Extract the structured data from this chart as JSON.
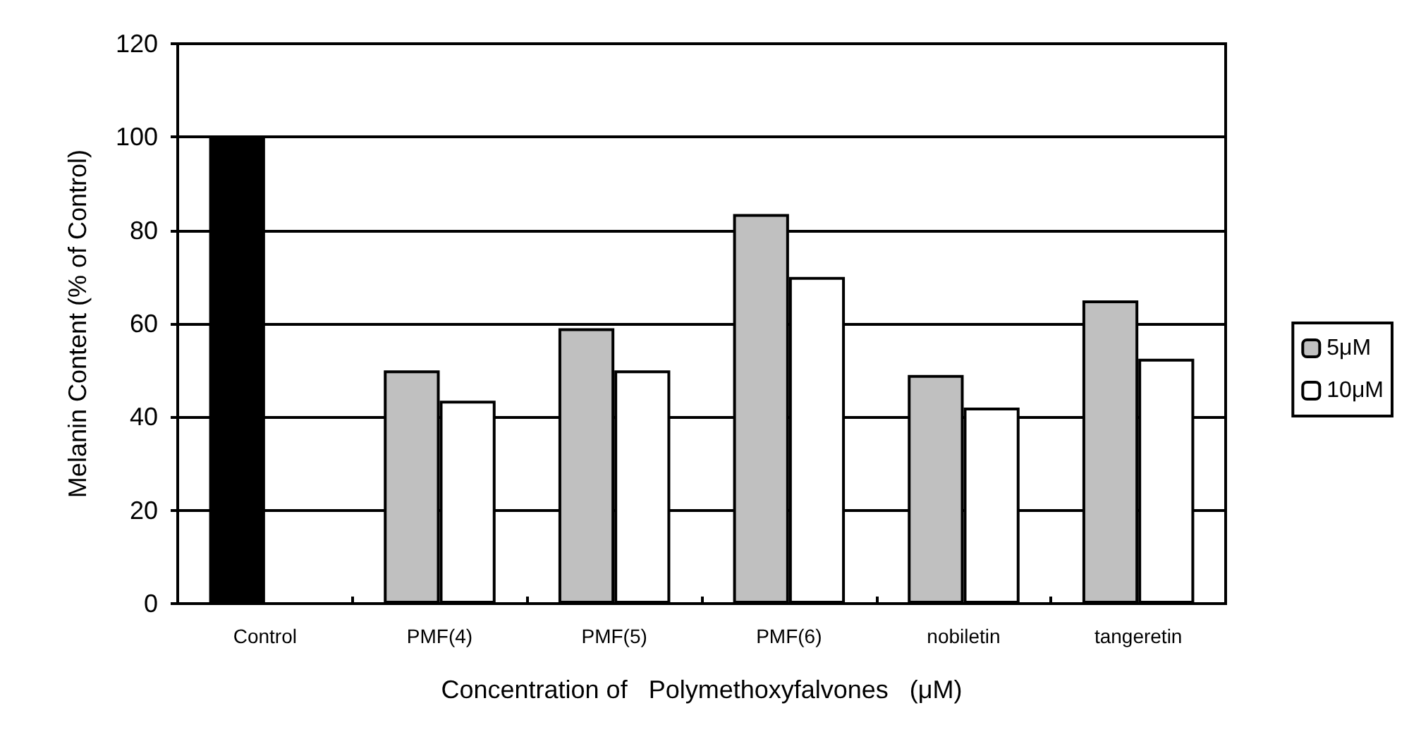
{
  "chart_data": {
    "type": "bar",
    "xlabel": "Concentration of   Polymethoxyfalvones   (μM)",
    "ylabel": "Melanin Content (% of Control)",
    "categories": [
      "Control",
      "PMF(4)",
      "PMF(5)",
      "PMF(6)",
      "nobiletin",
      "tangeretin"
    ],
    "series": [
      {
        "name": "5μM",
        "color": "#c0c0c0",
        "colors": [
          "#000000",
          "#c0c0c0",
          "#c0c0c0",
          "#c0c0c0",
          "#c0c0c0",
          "#c0c0c0"
        ],
        "values": [
          100,
          50,
          59,
          83.5,
          49,
          65
        ]
      },
      {
        "name": "10μM",
        "color": "#ffffff",
        "values": [
          null,
          43.5,
          50,
          70,
          42,
          52.5
        ]
      }
    ],
    "ylim": [
      0,
      120
    ],
    "yticks": [
      0,
      20,
      40,
      60,
      80,
      100,
      120
    ],
    "grid": "y",
    "legend": "right"
  }
}
